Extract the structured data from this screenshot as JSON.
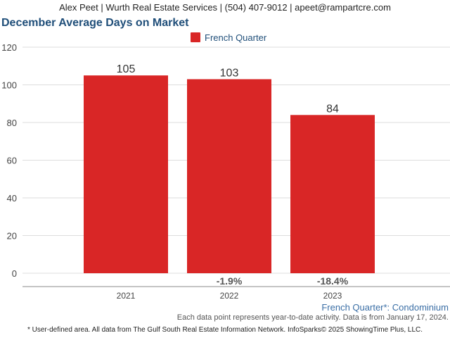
{
  "header": {
    "contact": "Alex Peet | Wurth Real Estate Services | (504) 407-9012 | apeet@rampartcre.com"
  },
  "chart_data": {
    "type": "bar",
    "title": "December Average Days on Market",
    "categories": [
      "2021",
      "2022",
      "2023"
    ],
    "series": [
      {
        "name": "French Quarter",
        "values": [
          105,
          103,
          84
        ],
        "color": "#d92626"
      }
    ],
    "data_labels": [
      "105",
      "103",
      "84"
    ],
    "change_labels": [
      "",
      "-1.9%",
      "-18.4%"
    ],
    "ylim": [
      0,
      120
    ],
    "yticks": [
      0,
      20,
      40,
      60,
      80,
      100,
      120
    ],
    "grid": true,
    "legend": "top-center"
  },
  "footer": {
    "series_note": "French Quarter*: Condominium",
    "data_note": "Each data point represents year-to-date activity. Data is from January 17, 2024.",
    "source": "* User-defined area. All data from The Gulf South Real Estate Information Network. InfoSparks© 2025 ShowingTime Plus, LLC."
  }
}
